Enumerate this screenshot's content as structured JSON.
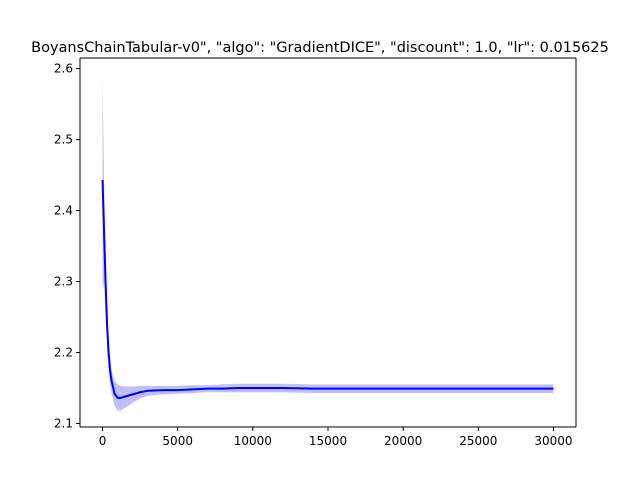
{
  "chart_data": {
    "type": "line",
    "title": "BoyansChainTabular-v0\", \"algo\": \"GradientDICE\", \"discount\": 1.0, \"lr\": 0.015625",
    "xlabel": "",
    "ylabel": "",
    "xlim": [
      -1500,
      31500
    ],
    "ylim": [
      2.095,
      2.615
    ],
    "xticks": [
      0,
      5000,
      10000,
      15000,
      20000,
      25000,
      30000
    ],
    "yticks": [
      2.1,
      2.2,
      2.3,
      2.4,
      2.5,
      2.6
    ],
    "ytick_labels": [
      "2.1",
      "2.2",
      "2.3",
      "2.4",
      "2.5",
      "2.6"
    ],
    "grid": false,
    "colors": {
      "line": "#0000ff",
      "band": "#0000ff",
      "band_opacity": 0.25
    },
    "series": [
      {
        "x": [
          0,
          50,
          100,
          200,
          300,
          400,
          500,
          600,
          800,
          1000,
          1200,
          1500,
          2000,
          2500,
          3000,
          4000,
          5000,
          6000,
          7000,
          8000,
          9000,
          10000,
          12000,
          14000,
          16000,
          18000,
          20000,
          22000,
          24000,
          26000,
          28000,
          30000
        ],
        "mean": [
          2.443,
          2.405,
          2.37,
          2.3,
          2.24,
          2.2,
          2.175,
          2.16,
          2.142,
          2.136,
          2.136,
          2.138,
          2.141,
          2.144,
          2.146,
          2.147,
          2.147,
          2.148,
          2.149,
          2.149,
          2.15,
          2.15,
          2.15,
          2.149,
          2.149,
          2.149,
          2.149,
          2.149,
          2.149,
          2.149,
          2.149,
          2.149
        ],
        "upper": [
          2.588,
          2.52,
          2.44,
          2.35,
          2.27,
          2.225,
          2.195,
          2.175,
          2.16,
          2.155,
          2.153,
          2.152,
          2.152,
          2.153,
          2.153,
          2.153,
          2.153,
          2.154,
          2.154,
          2.155,
          2.156,
          2.156,
          2.156,
          2.155,
          2.155,
          2.155,
          2.155,
          2.155,
          2.155,
          2.155,
          2.155,
          2.155
        ],
        "lower": [
          2.298,
          2.29,
          2.3,
          2.25,
          2.21,
          2.175,
          2.155,
          2.142,
          2.125,
          2.118,
          2.118,
          2.122,
          2.129,
          2.135,
          2.139,
          2.141,
          2.142,
          2.143,
          2.144,
          2.144,
          2.144,
          2.144,
          2.144,
          2.143,
          2.143,
          2.143,
          2.143,
          2.143,
          2.143,
          2.143,
          2.143,
          2.143
        ]
      }
    ]
  }
}
